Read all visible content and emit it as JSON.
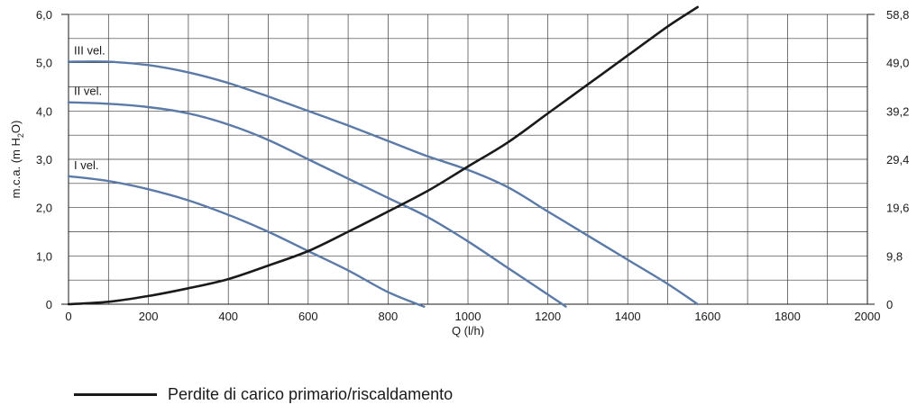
{
  "chart_data": {
    "type": "line",
    "xlabel": "Q (l/h)",
    "ylabel": "m.c.a. (m H2O)",
    "ylabel_main": "m.c.a. (m H",
    "ylabel_sub": "2",
    "ylabel_end": "O)",
    "xlim": [
      0,
      2000
    ],
    "ylim": [
      0,
      6.0
    ],
    "y2lim": [
      0,
      58.8
    ],
    "grid": true,
    "x_ticks": [
      0,
      200,
      400,
      600,
      800,
      1000,
      1200,
      1400,
      1600,
      1800,
      2000
    ],
    "x_tick_labels": [
      "0",
      "200",
      "400",
      "600",
      "800",
      "1000",
      "1200",
      "1400",
      "1600",
      "1800",
      "2000"
    ],
    "y_ticks": [
      0,
      1,
      2,
      3,
      4,
      5,
      6
    ],
    "y_tick_labels": [
      "0",
      "1,0",
      "2,0",
      "3,0",
      "4,0",
      "5,0",
      "6,0"
    ],
    "y2_tick_labels": [
      "0",
      "9,8",
      "19,6",
      "29,4",
      "39,2",
      "49,0",
      "58,8"
    ],
    "series": [
      {
        "name": "I vel.",
        "color": "#5b7aa8",
        "x": [
          0,
          100,
          200,
          300,
          400,
          500,
          600,
          700,
          800,
          890
        ],
        "y": [
          2.65,
          2.55,
          2.38,
          2.15,
          1.85,
          1.5,
          1.1,
          0.7,
          0.25,
          -0.05
        ]
      },
      {
        "name": "II vel.",
        "color": "#5b7aa8",
        "x": [
          0,
          100,
          200,
          300,
          400,
          500,
          600,
          700,
          800,
          900,
          1000,
          1100,
          1200,
          1245
        ],
        "y": [
          4.18,
          4.15,
          4.08,
          3.95,
          3.72,
          3.4,
          3.0,
          2.6,
          2.2,
          1.8,
          1.3,
          0.75,
          0.2,
          -0.05
        ]
      },
      {
        "name": "III vel.",
        "color": "#5b7aa8",
        "x": [
          0,
          100,
          200,
          300,
          400,
          500,
          600,
          700,
          800,
          900,
          1000,
          1100,
          1200,
          1300,
          1400,
          1500,
          1575
        ],
        "y": [
          5.02,
          5.02,
          4.95,
          4.8,
          4.58,
          4.3,
          4.0,
          3.7,
          3.38,
          3.06,
          2.78,
          2.42,
          1.92,
          1.42,
          0.92,
          0.42,
          0.0
        ]
      },
      {
        "name": "Perdite di carico primario/riscaldamento",
        "color": "#1a1a1a",
        "x": [
          0,
          100,
          200,
          300,
          400,
          500,
          600,
          700,
          800,
          900,
          1000,
          1100,
          1200,
          1300,
          1400,
          1500,
          1575
        ],
        "y": [
          0.0,
          0.05,
          0.17,
          0.33,
          0.52,
          0.8,
          1.1,
          1.5,
          1.92,
          2.35,
          2.85,
          3.35,
          3.95,
          4.55,
          5.15,
          5.75,
          6.15
        ]
      }
    ],
    "legend_entries": [
      {
        "label": "Perdite di carico primario/riscaldamento",
        "color": "#1a1a1a"
      }
    ]
  }
}
